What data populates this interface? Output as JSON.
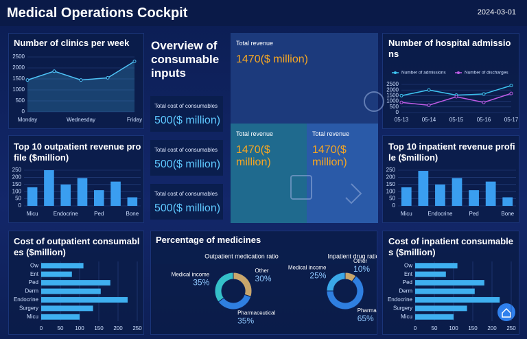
{
  "header": {
    "title": "Medical Operations Cockpit",
    "date": "2024-03-01"
  },
  "overview": {
    "title": "Overview of consumable inputs",
    "cards": [
      {
        "label": "Total cost of consumables",
        "value": "500($ million)"
      },
      {
        "label": "Total cost of consumables",
        "value": "500($ million)"
      },
      {
        "label": "Total cost of consumables",
        "value": "500($ million)"
      }
    ]
  },
  "revenue": {
    "cards": [
      {
        "label": "Total revenue",
        "value": "1470($ million)"
      },
      {
        "label": "Total revenue",
        "value": "1470($ million)"
      },
      {
        "label": "Total revenue",
        "value": "1470($ million)"
      }
    ]
  },
  "medicines_panel": {
    "title": "Percentage of medicines"
  },
  "chart_data": [
    {
      "type": "line",
      "title": "Number of clinics per week",
      "categories": [
        "Monday",
        null,
        "Wednesday",
        null,
        "Friday"
      ],
      "values": [
        1450,
        1850,
        1450,
        1550,
        2300
      ],
      "color": "#4fc3f7",
      "area": true,
      "ylim": [
        0,
        2500
      ],
      "yticks": [
        0,
        500,
        1000,
        1500,
        2000,
        2500
      ],
      "grid": true
    },
    {
      "type": "line",
      "title": "Number of hospital admissions",
      "categories": [
        "05-13",
        "05-14",
        "05-15",
        "05-16",
        "05-17"
      ],
      "series": [
        {
          "name": "Number of admissions",
          "color": "#3ec6f2",
          "values": [
            1500,
            2000,
            1550,
            1650,
            2400
          ]
        },
        {
          "name": "Number of discharges",
          "color": "#c05ce6",
          "values": [
            900,
            650,
            1400,
            900,
            1700
          ]
        }
      ],
      "ylim": [
        0,
        2500
      ],
      "yticks": [
        0,
        500,
        1000,
        1500,
        2000,
        2500
      ],
      "grid": true,
      "legend": "top"
    },
    {
      "type": "bar",
      "title": "Top 10 outpatient revenue profile ($million)",
      "categories": [
        "Micu",
        null,
        "Endocrine",
        null,
        "Ped",
        null,
        "Bone"
      ],
      "values": [
        130,
        250,
        150,
        195,
        110,
        170,
        60
      ],
      "color": "#3a9ef0",
      "ylim": [
        0,
        250
      ],
      "yticks": [
        0,
        50,
        100,
        150,
        200,
        250
      ],
      "grid": true
    },
    {
      "type": "bar",
      "title": "Top 10 inpatient revenue profile ($million)",
      "categories": [
        "Micu",
        null,
        "Endocrine",
        null,
        "Ped",
        null,
        "Bone"
      ],
      "values": [
        130,
        245,
        150,
        195,
        110,
        170,
        60
      ],
      "color": "#3a9ef0",
      "ylim": [
        0,
        250
      ],
      "yticks": [
        0,
        50,
        100,
        150,
        200,
        250
      ],
      "grid": true
    },
    {
      "type": "bar",
      "orientation": "horizontal",
      "title": "Cost of outpatient consumables ($million)",
      "categories": [
        "Ow",
        "Ent",
        "Ped",
        "Derm",
        "Endocrine",
        "Surgery",
        "Micu"
      ],
      "values": [
        110,
        80,
        180,
        155,
        225,
        135,
        100
      ],
      "color": "#3fb0f0",
      "xlim": [
        0,
        250
      ],
      "xticks": [
        0,
        50,
        100,
        150,
        200,
        250
      ],
      "grid": true
    },
    {
      "type": "bar",
      "orientation": "horizontal",
      "title": "Cost of inpatient consumables ($million)",
      "categories": [
        "Ow",
        "Ent",
        "Ped",
        "Derm",
        "Endocrine",
        "Surgery",
        "Micu"
      ],
      "values": [
        110,
        80,
        180,
        155,
        220,
        135,
        100
      ],
      "color": "#3fb0f0",
      "xlim": [
        0,
        250
      ],
      "xticks": [
        0,
        50,
        100,
        150,
        200,
        250
      ],
      "grid": true
    },
    {
      "type": "pie",
      "title": "Outpatient medication ratio",
      "categories": [
        "Other",
        "Pharmaceutical",
        "Medical income"
      ],
      "values": [
        30,
        35,
        35
      ],
      "value_labels": [
        "30%",
        "35%",
        "35%"
      ],
      "colors": [
        "#c9a66b",
        "#2f7fe0",
        "#35c0c8"
      ]
    },
    {
      "type": "pie",
      "title": "Inpatient drug ratio",
      "categories": [
        "Other",
        "Pharmaceutical",
        "Medical income"
      ],
      "values": [
        10,
        65,
        25
      ],
      "value_labels": [
        "10%",
        "65%",
        "25%"
      ],
      "colors": [
        "#c9a66b",
        "#2f7fe0",
        "#3aa8e8"
      ]
    }
  ]
}
